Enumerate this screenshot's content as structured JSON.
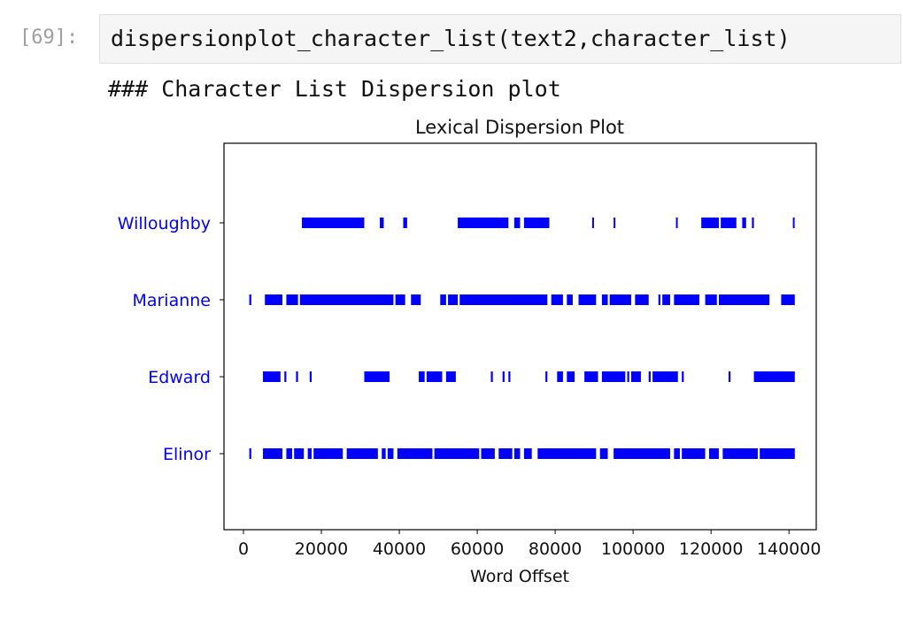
{
  "cell": {
    "prompt": "[69]:",
    "code": "dispersionplot_character_list(text2,character_list)"
  },
  "output": {
    "text": "### Character List Dispersion plot"
  },
  "colors": {
    "marks": "#0000ff",
    "axis": "#000000"
  },
  "chart_data": {
    "type": "scatter",
    "title": "Lexical Dispersion Plot",
    "xlabel": "Word Offset",
    "ylabel": "",
    "xlim": [
      -5000,
      147000
    ],
    "xticks": [
      0,
      20000,
      40000,
      60000,
      80000,
      100000,
      120000,
      140000
    ],
    "xtick_labels": [
      "0",
      "20000",
      "40000",
      "60000",
      "80000",
      "100000",
      "120000",
      "140000"
    ],
    "categories": [
      "Willoughby",
      "Marianne",
      "Edward",
      "Elinor"
    ],
    "series": [
      {
        "name": "Willoughby",
        "segments": [
          [
            15000,
            31000
          ],
          [
            35000,
            36000
          ],
          [
            41000,
            42000
          ],
          [
            55000,
            68000
          ],
          [
            69500,
            71000
          ],
          [
            72000,
            78500
          ],
          [
            89500,
            89900
          ],
          [
            95000,
            95400
          ],
          [
            111000,
            111400
          ],
          [
            117500,
            122000
          ],
          [
            122500,
            126500
          ],
          [
            128000,
            129000
          ],
          [
            130500,
            131000
          ],
          [
            141000,
            141400
          ]
        ]
      },
      {
        "name": "Marianne",
        "segments": [
          [
            1500,
            2000
          ],
          [
            5500,
            10000
          ],
          [
            11000,
            14000
          ],
          [
            14500,
            38500
          ],
          [
            39000,
            41500
          ],
          [
            43000,
            45500
          ],
          [
            50500,
            52000
          ],
          [
            52500,
            55000
          ],
          [
            55500,
            78000
          ],
          [
            79000,
            82000
          ],
          [
            83000,
            84500
          ],
          [
            86000,
            90500
          ],
          [
            92000,
            93500
          ],
          [
            94000,
            99500
          ],
          [
            100500,
            104000
          ],
          [
            106500,
            107000
          ],
          [
            107500,
            109500
          ],
          [
            110500,
            117000
          ],
          [
            118500,
            121500
          ],
          [
            122000,
            135000
          ],
          [
            138000,
            141500
          ]
        ]
      },
      {
        "name": "Edward",
        "segments": [
          [
            5000,
            9500
          ],
          [
            10500,
            11000
          ],
          [
            13500,
            14000
          ],
          [
            17000,
            17500
          ],
          [
            31000,
            37500
          ],
          [
            45000,
            46500
          ],
          [
            47000,
            51000
          ],
          [
            52000,
            54500
          ],
          [
            63500,
            64000
          ],
          [
            66500,
            67000
          ],
          [
            68000,
            68500
          ],
          [
            77500,
            78000
          ],
          [
            80500,
            82000
          ],
          [
            83000,
            85000
          ],
          [
            87500,
            91000
          ],
          [
            92000,
            98000
          ],
          [
            98500,
            99000
          ],
          [
            99500,
            102000
          ],
          [
            104000,
            104500
          ],
          [
            105000,
            111500
          ],
          [
            112500,
            113000
          ],
          [
            124500,
            125000
          ],
          [
            131000,
            141500
          ]
        ]
      },
      {
        "name": "Elinor",
        "segments": [
          [
            1500,
            2000
          ],
          [
            5000,
            10000
          ],
          [
            11000,
            12500
          ],
          [
            13000,
            15500
          ],
          [
            16500,
            17500
          ],
          [
            18000,
            25500
          ],
          [
            26500,
            34500
          ],
          [
            35500,
            36500
          ],
          [
            37000,
            38500
          ],
          [
            39500,
            48500
          ],
          [
            49000,
            60500
          ],
          [
            61000,
            64500
          ],
          [
            65500,
            69000
          ],
          [
            69500,
            71000
          ],
          [
            72000,
            74000
          ],
          [
            75500,
            90500
          ],
          [
            91500,
            93500
          ],
          [
            95000,
            109500
          ],
          [
            110500,
            112000
          ],
          [
            112500,
            118500
          ],
          [
            119500,
            122000
          ],
          [
            123000,
            132000
          ],
          [
            132500,
            141500
          ]
        ]
      }
    ]
  }
}
